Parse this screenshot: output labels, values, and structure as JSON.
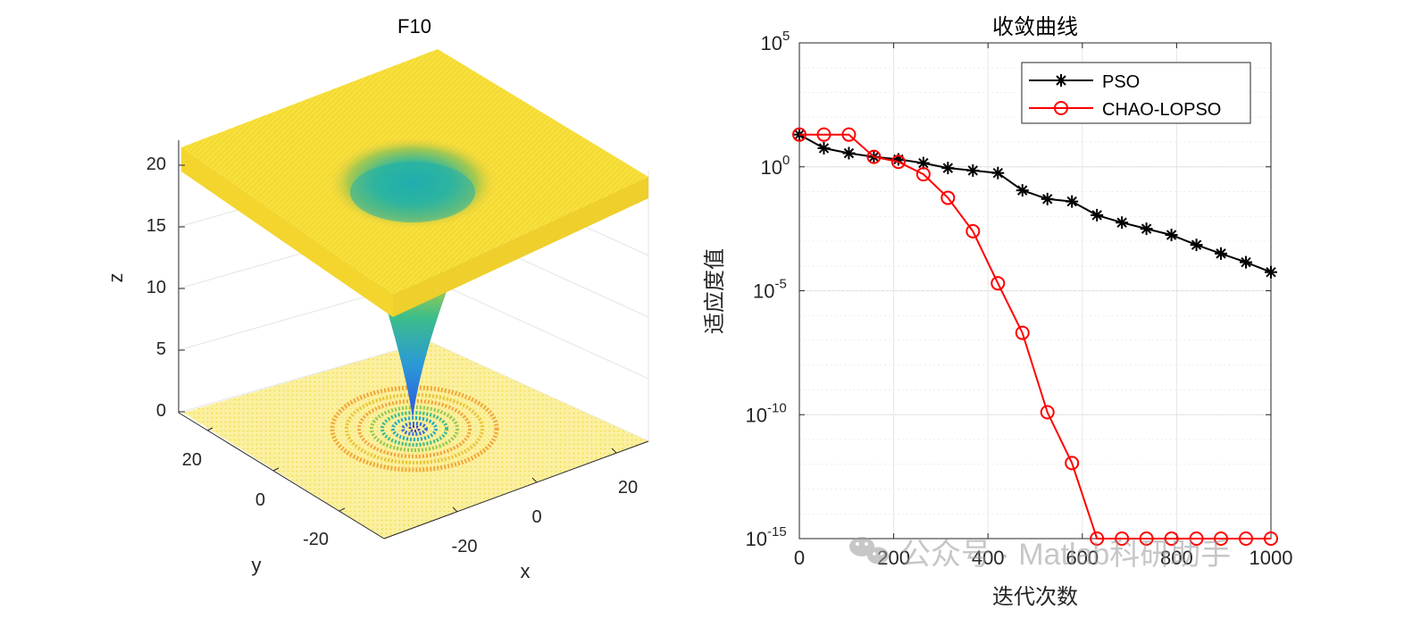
{
  "chart_data": [
    {
      "type": "surface3d",
      "title": "F10",
      "xlabel": "x",
      "ylabel": "y",
      "zlabel": "z",
      "x_ticks": [
        "-20",
        "0",
        "20"
      ],
      "y_ticks": [
        "-20",
        "0",
        "20"
      ],
      "z_ticks": [
        "0",
        "5",
        "10",
        "15",
        "20"
      ],
      "xlim": [
        -32,
        32
      ],
      "ylim": [
        -32,
        32
      ],
      "zlim": [
        0,
        22
      ],
      "function": "Ackley",
      "colormap": "parula",
      "contour_on_floor": true
    },
    {
      "type": "line",
      "title": "收敛曲线",
      "xlabel": "迭代次数",
      "ylabel": "适应度值",
      "yscale": "log",
      "xlim": [
        0,
        1000
      ],
      "ylim_exp": [
        -15,
        5
      ],
      "x_ticks": [
        "0",
        "200",
        "400",
        "600",
        "800",
        "1000"
      ],
      "y_ticks": [
        {
          "base": "10",
          "exp": "5",
          "value": 5
        },
        {
          "base": "10",
          "exp": "0",
          "value": 0
        },
        {
          "base": "10",
          "exp": "-5",
          "value": -5
        },
        {
          "base": "10",
          "exp": "-10",
          "value": -10
        },
        {
          "base": "10",
          "exp": "-15",
          "value": -15
        }
      ],
      "grid": true,
      "legend_position": "top-right",
      "series": [
        {
          "name": "PSO",
          "color": "#000000",
          "marker": "asterisk",
          "x": [
            0,
            52,
            105,
            158,
            210,
            263,
            315,
            368,
            421,
            473,
            526,
            578,
            631,
            684,
            736,
            789,
            842,
            894,
            947,
            1000
          ],
          "log10_y": [
            1.3,
            0.75,
            0.55,
            0.4,
            0.3,
            0.15,
            -0.05,
            -0.15,
            -0.25,
            -0.95,
            -1.3,
            -1.4,
            -1.95,
            -2.25,
            -2.5,
            -2.75,
            -3.15,
            -3.5,
            -3.85,
            -4.25
          ]
        },
        {
          "name": "CHAO-LOPSO",
          "color": "#ff0000",
          "marker": "circle",
          "x": [
            0,
            52,
            105,
            158,
            210,
            263,
            315,
            368,
            421,
            473,
            526,
            578,
            631,
            684,
            736,
            789,
            842,
            894,
            947,
            1000
          ],
          "log10_y": [
            1.3,
            1.3,
            1.3,
            0.4,
            0.2,
            -0.3,
            -1.25,
            -2.6,
            -4.7,
            -6.7,
            -9.9,
            -11.95,
            -15,
            -15,
            -15,
            -15,
            -15,
            -15,
            -15,
            -15
          ]
        }
      ]
    }
  ],
  "watermark": "公众号 · Matlab科研助手"
}
